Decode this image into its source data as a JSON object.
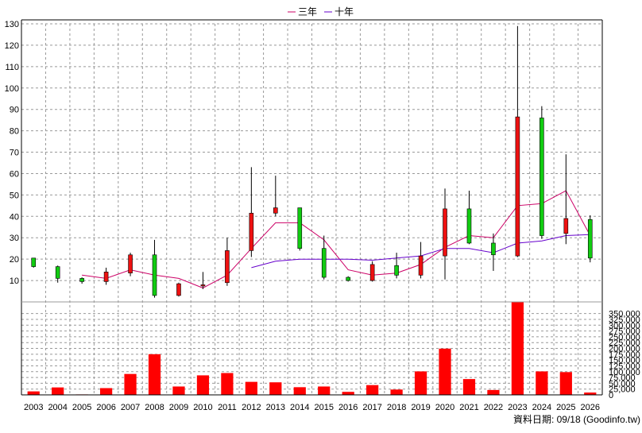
{
  "legend": [
    {
      "label": "三年",
      "color": "#cc0066"
    },
    {
      "label": "十年",
      "color": "#6600cc"
    }
  ],
  "footer_text": "資料日期: 09/18 (Goodinfo.tw)",
  "chart_data": [
    {
      "type": "candlestick",
      "title": "",
      "ylim": [
        0,
        130
      ],
      "yticks": [
        10,
        20,
        30,
        40,
        50,
        60,
        70,
        80,
        90,
        100,
        110,
        120,
        130
      ],
      "grid": true,
      "legend_position": "top-center",
      "categories": [
        "2003",
        "2004",
        "2005",
        "2006",
        "2007",
        "2008",
        "2009",
        "2010",
        "2011",
        "2012",
        "2013",
        "2014",
        "2015",
        "2016",
        "2017",
        "2018",
        "2019",
        "2020",
        "2021",
        "2022",
        "2023",
        "2024",
        "2025",
        "2026"
      ],
      "candles": [
        {
          "year": "2003",
          "open": 20.5,
          "close": 16.5,
          "high": 20.5,
          "low": 16.0,
          "color": "green"
        },
        {
          "year": "2004",
          "open": 16.5,
          "close": 11.0,
          "high": 17.0,
          "low": 9.0,
          "color": "green"
        },
        {
          "year": "2005",
          "open": 11.0,
          "close": 9.5,
          "high": 11.5,
          "low": 8.5,
          "color": "green"
        },
        {
          "year": "2006",
          "open": 9.5,
          "close": 14.0,
          "high": 16.0,
          "low": 8.0,
          "color": "red"
        },
        {
          "year": "2007",
          "open": 13.5,
          "close": 22.0,
          "high": 23.0,
          "low": 12.0,
          "color": "red"
        },
        {
          "year": "2008",
          "open": 22.0,
          "close": 3.0,
          "high": 29.0,
          "low": 2.0,
          "color": "green"
        },
        {
          "year": "2009",
          "open": 3.0,
          "close": 8.5,
          "high": 9.0,
          "low": 2.5,
          "color": "red"
        },
        {
          "year": "2010",
          "open": 8.0,
          "close": 7.5,
          "high": 14.0,
          "low": 6.0,
          "color": "red"
        },
        {
          "year": "2011",
          "open": 9.0,
          "close": 24.0,
          "high": 30.0,
          "low": 7.5,
          "color": "red"
        },
        {
          "year": "2012",
          "open": 24.0,
          "close": 41.5,
          "high": 63.0,
          "low": 21.0,
          "color": "red"
        },
        {
          "year": "2013",
          "open": 41.5,
          "close": 44.0,
          "high": 59.0,
          "low": 40.0,
          "color": "red"
        },
        {
          "year": "2014",
          "open": 44.0,
          "close": 25.0,
          "high": 44.0,
          "low": 24.0,
          "color": "green"
        },
        {
          "year": "2015",
          "open": 25.0,
          "close": 11.5,
          "high": 31.0,
          "low": 10.5,
          "color": "green"
        },
        {
          "year": "2016",
          "open": 11.5,
          "close": 10.0,
          "high": 12.0,
          "low": 9.5,
          "color": "green"
        },
        {
          "year": "2017",
          "open": 10.0,
          "close": 17.5,
          "high": 19.0,
          "low": 9.5,
          "color": "red"
        },
        {
          "year": "2018",
          "open": 17.0,
          "close": 12.5,
          "high": 23.0,
          "low": 11.0,
          "color": "green"
        },
        {
          "year": "2019",
          "open": 12.5,
          "close": 21.5,
          "high": 28.0,
          "low": 11.0,
          "color": "red"
        },
        {
          "year": "2020",
          "open": 21.5,
          "close": 43.5,
          "high": 53.0,
          "low": 10.5,
          "color": "red"
        },
        {
          "year": "2021",
          "open": 43.5,
          "close": 27.5,
          "high": 52.0,
          "low": 27.0,
          "color": "green"
        },
        {
          "year": "2022",
          "open": 27.5,
          "close": 22.0,
          "high": 32.0,
          "low": 14.5,
          "color": "green"
        },
        {
          "year": "2023",
          "open": 21.5,
          "close": 86.5,
          "high": 129.0,
          "low": 21.0,
          "color": "red"
        },
        {
          "year": "2024",
          "open": 86.0,
          "close": 31.0,
          "high": 91.5,
          "low": 29.5,
          "color": "green"
        },
        {
          "year": "2025",
          "open": 32.0,
          "close": 39.0,
          "high": 69.0,
          "low": 27.0,
          "color": "red"
        },
        {
          "year": "2026",
          "open": 38.5,
          "close": 20.5,
          "high": 40.5,
          "low": 18.5,
          "color": "green"
        }
      ],
      "series": [
        {
          "name": "三年",
          "color": "#cc0066",
          "values": [
            null,
            null,
            12.5,
            11.0,
            15.0,
            12.5,
            11.0,
            6.5,
            12.5,
            25.0,
            37.0,
            37.0,
            29.0,
            15.0,
            12.5,
            13.5,
            17.5,
            25.5,
            31.0,
            30.0,
            45.0,
            46.0,
            52.0,
            31.0
          ]
        },
        {
          "name": "十年",
          "color": "#6600cc",
          "values": [
            null,
            null,
            null,
            null,
            null,
            null,
            null,
            null,
            null,
            16.0,
            19.0,
            20.0,
            20.0,
            20.0,
            19.5,
            20.5,
            21.5,
            25.0,
            25.0,
            23.0,
            27.5,
            28.5,
            31.0,
            31.5
          ]
        }
      ]
    },
    {
      "type": "bar",
      "title": "",
      "ylim": [
        0,
        400000
      ],
      "yticks": [
        0,
        25000,
        50000,
        75000,
        100000,
        125000,
        150000,
        175000,
        200000,
        225000,
        250000,
        275000,
        300000,
        325000,
        350000
      ],
      "ytick_labels": [
        "0",
        "25,000",
        "50,000",
        "75,000",
        "100,000",
        "125,000",
        "150,000",
        "175,000",
        "200,000",
        "225,000",
        "250,000",
        "275,000",
        "300,000",
        "325,000",
        "350,000"
      ],
      "grid": true,
      "categories": [
        "2003",
        "2004",
        "2005",
        "2006",
        "2007",
        "2008",
        "2009",
        "2010",
        "2011",
        "2012",
        "2013",
        "2014",
        "2015",
        "2016",
        "2017",
        "2018",
        "2019",
        "2020",
        "2021",
        "2022",
        "2023",
        "2024",
        "2025",
        "2026"
      ],
      "values": [
        15000,
        32000,
        2000,
        29000,
        90000,
        175000,
        36000,
        84000,
        94000,
        56000,
        54000,
        33000,
        36000,
        13000,
        42000,
        23000,
        101000,
        199000,
        68000,
        21000,
        400000,
        101000,
        98000,
        10000
      ],
      "color": "#ff0000"
    }
  ]
}
